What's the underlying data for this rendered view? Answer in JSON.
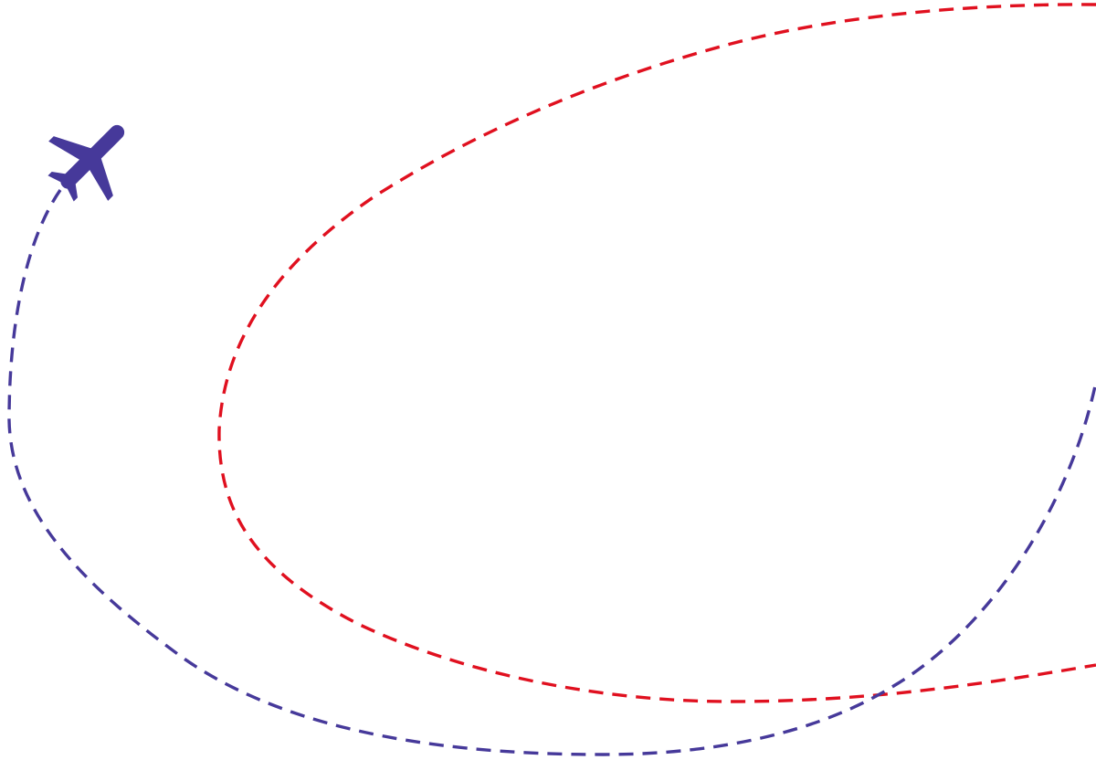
{
  "illustration": {
    "icons": {
      "plane": "airplane-icon"
    },
    "colors": {
      "background": "#ffffff",
      "blue_route": "#46399a",
      "red_route": "#e0101f",
      "plane": "#46399a"
    }
  }
}
